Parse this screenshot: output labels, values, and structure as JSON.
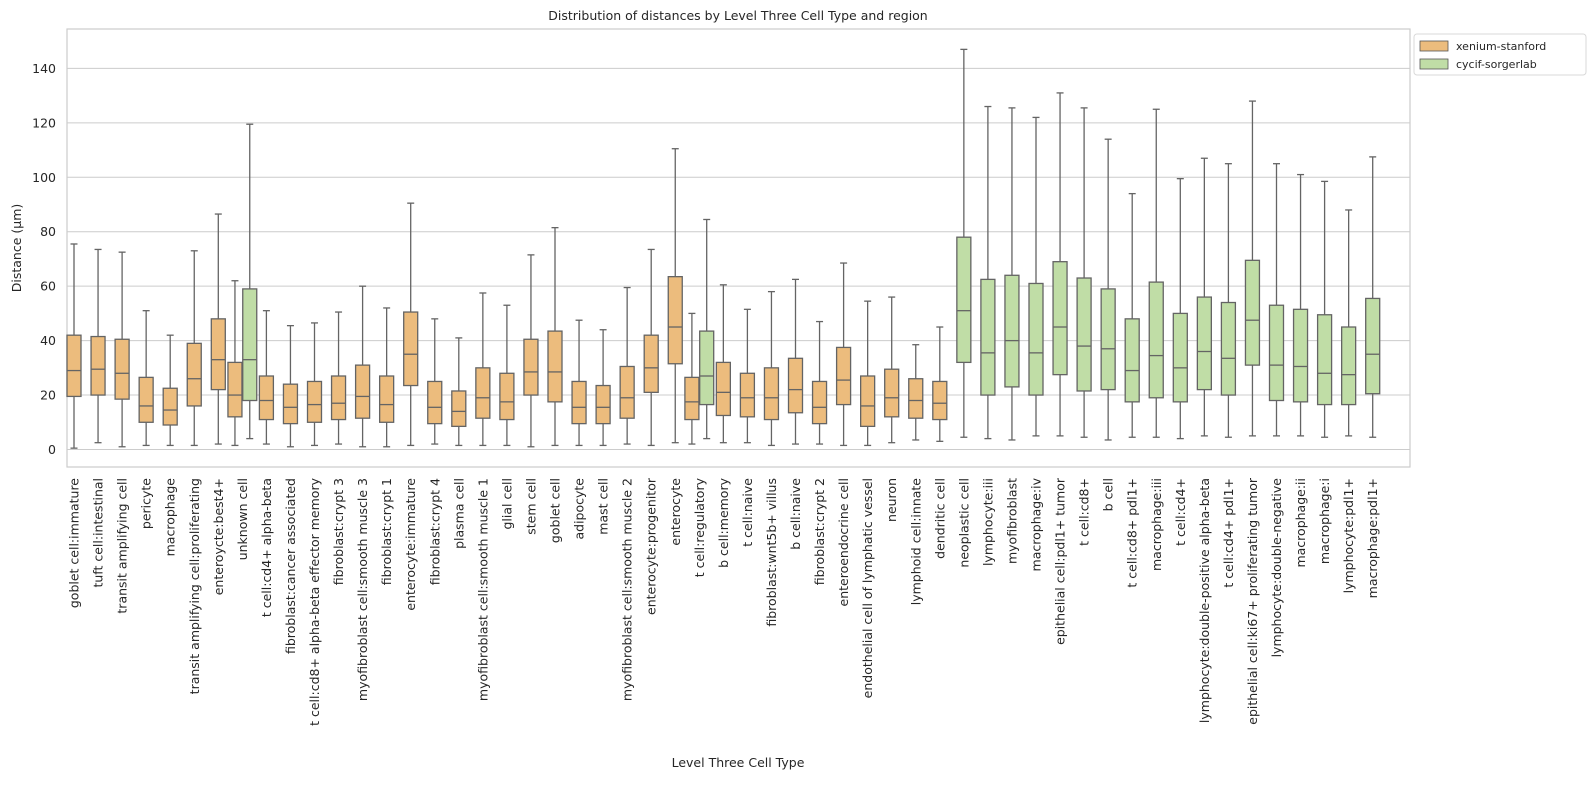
{
  "chart_data": {
    "type": "box",
    "title": "Distribution of distances by Level Three Cell Type and region",
    "xlabel": "Level Three Cell Type",
    "ylabel": "Distance (µm)",
    "ylim": [
      -7,
      155
    ],
    "yticks": [
      0,
      20,
      40,
      60,
      80,
      100,
      120,
      140
    ],
    "grid": "horizontal",
    "legend_position": "outside-top-right",
    "legend": [
      {
        "name": "xenium-stanford",
        "color": "#ecbc7d"
      },
      {
        "name": "cycif-sorgerlab",
        "color": "#c0dda6"
      }
    ],
    "categories": [
      "goblet cell:immature",
      "tuft cell:intestinal",
      "transit amplifying cell",
      "pericyte",
      "macrophage",
      "transit amplifying cell:proliferating",
      "enteroycte:best4+",
      "unknown cell",
      "t cell:cd4+ alpha-beta",
      "fibroblast:cancer associated",
      "t cell:cd8+ alpha-beta effector memory",
      "fibroblast:crypt 3",
      "myofibroblast cell:smooth muscle 3",
      "fibroblast:crypt 1",
      "enterocyte:immature",
      "fibroblast:crypt 4",
      "plasma cell",
      "myofibroblast cell:smooth muscle 1",
      "glial cell",
      "stem cell",
      "goblet cell",
      "adipocyte",
      "mast cell",
      "myofibroblast cell:smooth muscle 2",
      "enterocyte:progenitor",
      "enterocyte",
      "t cell:regulatory",
      "b cell:memory",
      "t cell:naive",
      "fibroblast:wnt5b+ villus",
      "b cell:naive",
      "fibroblast:crypt 2",
      "enteroendocrine cell",
      "endothelial cell of lymphatic vessel",
      "neuron",
      "lymphoid cell:innate",
      "dendritic cell",
      "neoplastic cell",
      "lymphocyte:iii",
      "myofibroblast",
      "macrophage:iv",
      "epithelial cell:pdl1+ tumor",
      "t cell:cd8+",
      "b cell",
      "t cell:cd8+ pdl1+",
      "macrophage:iii",
      "t cell:cd4+",
      "lymphocyte:double-positive alpha-beta",
      "t cell:cd4+ pdl1+",
      "epithelial cell:ki67+ proliferating tumor",
      "lymphocyte:double-negative",
      "macrophage:ii",
      "macrophage:i",
      "lymphocyte:pdl1+",
      "macrophage:pdl1+"
    ],
    "series": [
      {
        "name": "xenium-stanford",
        "boxes": [
          {
            "category": "goblet cell:immature",
            "whislo": 0.5,
            "q1": 19.5,
            "med": 29,
            "q3": 42,
            "whishi": 75.5
          },
          {
            "category": "tuft cell:intestinal",
            "whislo": 2.5,
            "q1": 20,
            "med": 29.5,
            "q3": 41.5,
            "whishi": 73.5
          },
          {
            "category": "transit amplifying cell",
            "whislo": 1,
            "q1": 18.5,
            "med": 28,
            "q3": 40.5,
            "whishi": 72.5
          },
          {
            "category": "pericyte",
            "whislo": 1.5,
            "q1": 10,
            "med": 16,
            "q3": 26.5,
            "whishi": 51
          },
          {
            "category": "macrophage",
            "whislo": 1.5,
            "q1": 9,
            "med": 14.5,
            "q3": 22.5,
            "whishi": 42
          },
          {
            "category": "transit amplifying cell:proliferating",
            "whislo": 1.5,
            "q1": 16,
            "med": 26,
            "q3": 39,
            "whishi": 73
          },
          {
            "category": "enteroycte:best4+",
            "whislo": 2,
            "q1": 22,
            "med": 33,
            "q3": 48,
            "whishi": 86.5
          },
          {
            "category": "unknown cell",
            "whislo": 1.5,
            "q1": 12,
            "med": 20,
            "q3": 32,
            "whishi": 62
          },
          {
            "category": "t cell:cd4+ alpha-beta",
            "whislo": 2,
            "q1": 11,
            "med": 18,
            "q3": 27,
            "whishi": 51
          },
          {
            "category": "fibroblast:cancer associated",
            "whislo": 1,
            "q1": 9.5,
            "med": 15.5,
            "q3": 24,
            "whishi": 45.5
          },
          {
            "category": "t cell:cd8+ alpha-beta effector memory",
            "whislo": 1.5,
            "q1": 10,
            "med": 16.5,
            "q3": 25,
            "whishi": 46.5
          },
          {
            "category": "fibroblast:crypt 3",
            "whislo": 2,
            "q1": 11,
            "med": 17,
            "q3": 27,
            "whishi": 50.5
          },
          {
            "category": "myofibroblast cell:smooth muscle 3",
            "whislo": 1,
            "q1": 11.5,
            "med": 19.5,
            "q3": 31,
            "whishi": 60
          },
          {
            "category": "fibroblast:crypt 1",
            "whislo": 1,
            "q1": 10,
            "med": 16.5,
            "q3": 27,
            "whishi": 52
          },
          {
            "category": "enterocyte:immature",
            "whislo": 1.5,
            "q1": 23.5,
            "med": 35,
            "q3": 50.5,
            "whishi": 90.5
          },
          {
            "category": "fibroblast:crypt 4",
            "whislo": 2,
            "q1": 9.5,
            "med": 15.5,
            "q3": 25,
            "whishi": 48
          },
          {
            "category": "plasma cell",
            "whislo": 1.5,
            "q1": 8.5,
            "med": 14,
            "q3": 21.5,
            "whishi": 41
          },
          {
            "category": "myofibroblast cell:smooth muscle 1",
            "whislo": 1.5,
            "q1": 11.5,
            "med": 19,
            "q3": 30,
            "whishi": 57.5
          },
          {
            "category": "glial cell",
            "whislo": 1.5,
            "q1": 11,
            "med": 17.5,
            "q3": 28,
            "whishi": 53
          },
          {
            "category": "stem cell",
            "whislo": 1,
            "q1": 20,
            "med": 28.5,
            "q3": 40.5,
            "whishi": 71.5
          },
          {
            "category": "goblet cell",
            "whislo": 1.5,
            "q1": 17.5,
            "med": 28.5,
            "q3": 43.5,
            "whishi": 81.5
          },
          {
            "category": "adipocyte",
            "whislo": 1.5,
            "q1": 9.5,
            "med": 15.5,
            "q3": 25,
            "whishi": 47.5
          },
          {
            "category": "mast cell",
            "whislo": 1.5,
            "q1": 9.5,
            "med": 15.5,
            "q3": 23.5,
            "whishi": 44
          },
          {
            "category": "myofibroblast cell:smooth muscle 2",
            "whislo": 2,
            "q1": 11.5,
            "med": 19,
            "q3": 30.5,
            "whishi": 59.5
          },
          {
            "category": "enterocyte:progenitor",
            "whislo": 1.5,
            "q1": 21,
            "med": 30,
            "q3": 42,
            "whishi": 73.5
          },
          {
            "category": "enterocyte",
            "whislo": 2.5,
            "q1": 31.5,
            "med": 45,
            "q3": 63.5,
            "whishi": 110.5
          },
          {
            "category": "t cell:regulatory",
            "whislo": 2,
            "q1": 11,
            "med": 17.5,
            "q3": 26.5,
            "whishi": 50
          },
          {
            "category": "b cell:memory",
            "whislo": 2.5,
            "q1": 12.5,
            "med": 21,
            "q3": 32,
            "whishi": 60.5
          },
          {
            "category": "t cell:naive",
            "whislo": 2.5,
            "q1": 12,
            "med": 19,
            "q3": 28,
            "whishi": 51.5
          },
          {
            "category": "fibroblast:wnt5b+ villus",
            "whislo": 1.5,
            "q1": 11,
            "med": 19,
            "q3": 30,
            "whishi": 58
          },
          {
            "category": "b cell:naive",
            "whislo": 2,
            "q1": 13.5,
            "med": 22,
            "q3": 33.5,
            "whishi": 62.5
          },
          {
            "category": "fibroblast:crypt 2",
            "whislo": 2,
            "q1": 9.5,
            "med": 15.5,
            "q3": 25,
            "whishi": 47
          },
          {
            "category": "enteroendocrine cell",
            "whislo": 1.5,
            "q1": 16.5,
            "med": 25.5,
            "q3": 37.5,
            "whishi": 68.5
          },
          {
            "category": "endothelial cell of lymphatic vessel",
            "whislo": 1.5,
            "q1": 8.5,
            "med": 16,
            "q3": 27,
            "whishi": 54.5
          },
          {
            "category": "neuron",
            "whislo": 2.5,
            "q1": 12,
            "med": 19,
            "q3": 29.5,
            "whishi": 56
          },
          {
            "category": "lymphoid cell:innate",
            "whislo": 3.5,
            "q1": 11.5,
            "med": 18,
            "q3": 26,
            "whishi": 38.5
          },
          {
            "category": "dendritic cell",
            "whislo": 3,
            "q1": 11,
            "med": 17,
            "q3": 25,
            "whishi": 45
          }
        ]
      },
      {
        "name": "cycif-sorgerlab",
        "boxes": [
          {
            "category": "unknown cell",
            "whislo": 4,
            "q1": 18,
            "med": 33,
            "q3": 59,
            "whishi": 119.5
          },
          {
            "category": "t cell:regulatory",
            "whislo": 4,
            "q1": 16.5,
            "med": 27,
            "q3": 43.5,
            "whishi": 84.5
          },
          {
            "category": "neoplastic cell",
            "whislo": 4.5,
            "q1": 32,
            "med": 51,
            "q3": 78,
            "whishi": 147
          },
          {
            "category": "lymphocyte:iii",
            "whislo": 4,
            "q1": 20,
            "med": 35.5,
            "q3": 62.5,
            "whishi": 126
          },
          {
            "category": "myofibroblast",
            "whislo": 3.5,
            "q1": 23,
            "med": 40,
            "q3": 64,
            "whishi": 125.5
          },
          {
            "category": "macrophage:iv",
            "whislo": 5,
            "q1": 20,
            "med": 35.5,
            "q3": 61,
            "whishi": 122
          },
          {
            "category": "epithelial cell:pdl1+ tumor",
            "whislo": 5,
            "q1": 27.5,
            "med": 45,
            "q3": 69,
            "whishi": 131
          },
          {
            "category": "t cell:cd8+",
            "whislo": 4.5,
            "q1": 21.5,
            "med": 38,
            "q3": 63,
            "whishi": 125.5
          },
          {
            "category": "b cell",
            "whislo": 3.5,
            "q1": 22,
            "med": 37,
            "q3": 59,
            "whishi": 114
          },
          {
            "category": "t cell:cd8+ pdl1+",
            "whislo": 4.5,
            "q1": 17.5,
            "med": 29,
            "q3": 48,
            "whishi": 94
          },
          {
            "category": "macrophage:iii",
            "whislo": 4.5,
            "q1": 19,
            "med": 34.5,
            "q3": 61.5,
            "whishi": 125
          },
          {
            "category": "t cell:cd4+",
            "whislo": 4,
            "q1": 17.5,
            "med": 30,
            "q3": 50,
            "whishi": 99.5
          },
          {
            "category": "lymphocyte:double-positive alpha-beta",
            "whislo": 5,
            "q1": 22,
            "med": 36,
            "q3": 56,
            "whishi": 107
          },
          {
            "category": "t cell:cd4+ pdl1+",
            "whislo": 4.5,
            "q1": 20,
            "med": 33.5,
            "q3": 54,
            "whishi": 105
          },
          {
            "category": "epithelial cell:ki67+ proliferating tumor",
            "whislo": 5,
            "q1": 31,
            "med": 47.5,
            "q3": 69.5,
            "whishi": 128
          },
          {
            "category": "lymphocyte:double-negative",
            "whislo": 5,
            "q1": 18,
            "med": 31,
            "q3": 53,
            "whishi": 105
          },
          {
            "category": "macrophage:ii",
            "whislo": 5,
            "q1": 17.5,
            "med": 30.5,
            "q3": 51.5,
            "whishi": 101
          },
          {
            "category": "macrophage:i",
            "whislo": 4.5,
            "q1": 16.5,
            "med": 28,
            "q3": 49.5,
            "whishi": 98.5
          },
          {
            "category": "lymphocyte:pdl1+",
            "whislo": 5,
            "q1": 16.5,
            "med": 27.5,
            "q3": 45,
            "whishi": 88
          },
          {
            "category": "macrophage:pdl1+",
            "whislo": 4.5,
            "q1": 20.5,
            "med": 35,
            "q3": 55.5,
            "whishi": 107.5
          }
        ]
      }
    ]
  }
}
